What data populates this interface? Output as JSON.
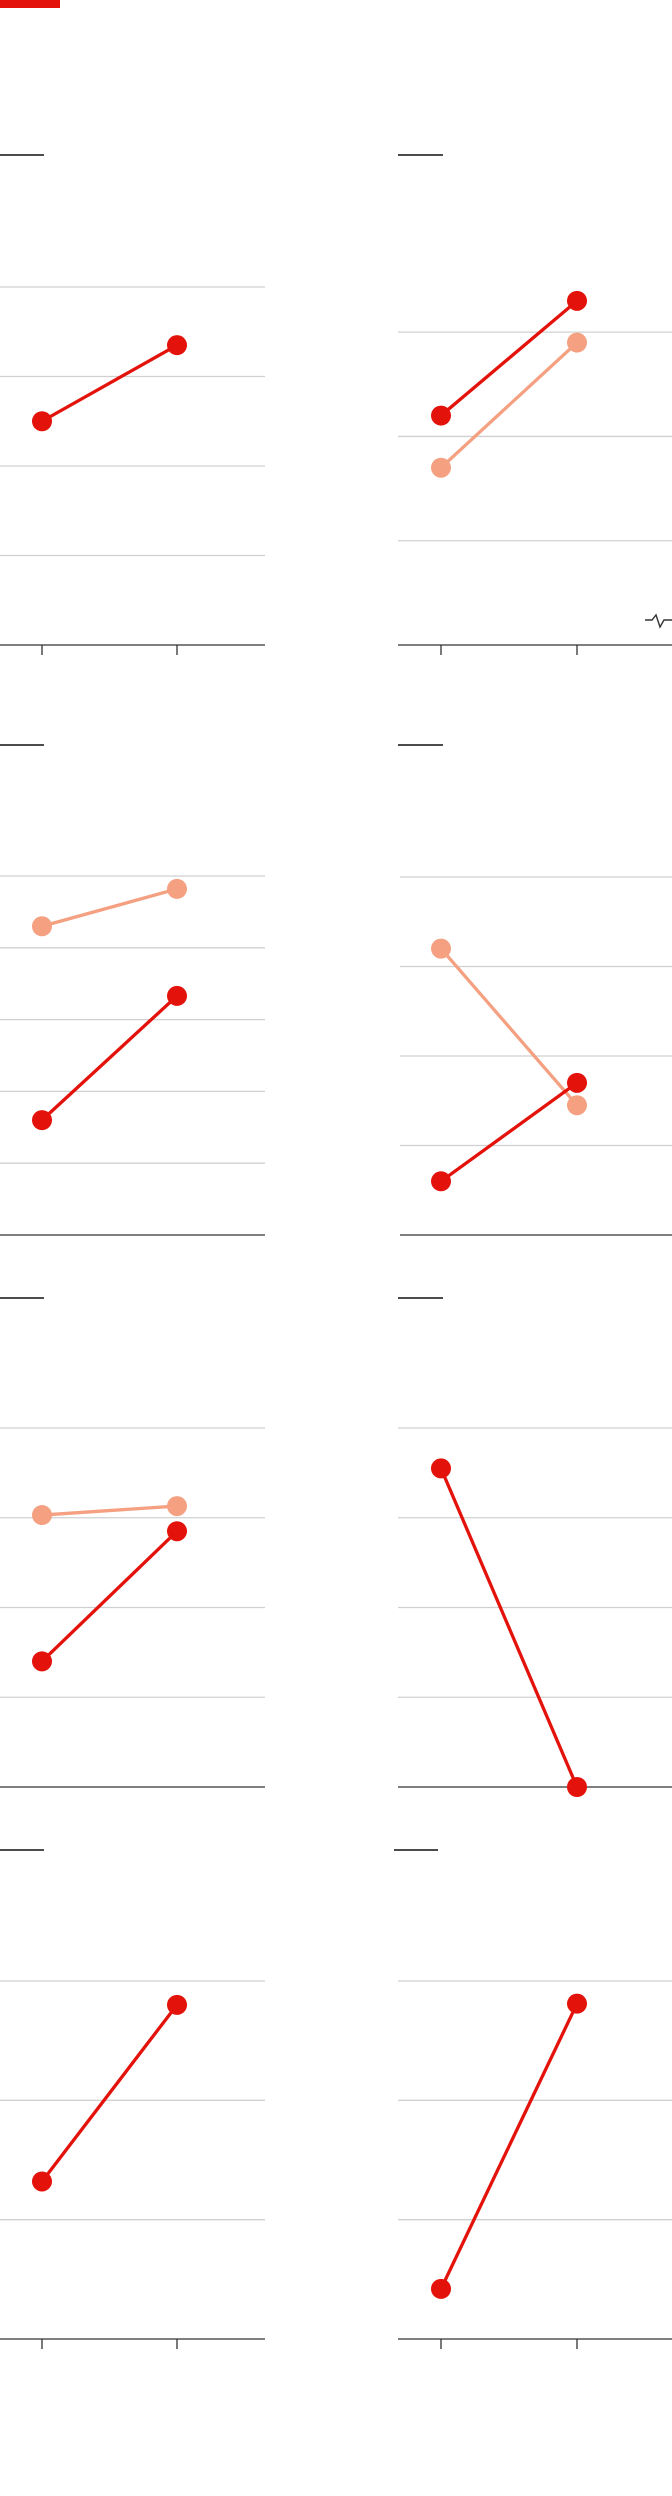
{
  "colors": {
    "primary": "#e3120b",
    "secondary": "#f4a081",
    "grid": "#d0d0d0",
    "axis": "#333333"
  },
  "chart_data": [
    {
      "type": "line",
      "title": "",
      "categories": [
        "",
        ""
      ],
      "ylim": [
        0,
        4
      ],
      "gridlines": [
        1,
        2,
        3,
        4
      ],
      "tick_marks": true,
      "series": [
        {
          "color_key": "primary",
          "values": [
            2.5,
            3.35
          ]
        }
      ]
    },
    {
      "type": "line",
      "title": "",
      "categories": [
        "",
        ""
      ],
      "ylim": [
        0,
        3.5
      ],
      "gridlines": [
        1,
        2,
        3
      ],
      "tick_marks": true,
      "axis_break": true,
      "series": [
        {
          "color_key": "primary",
          "values": [
            2.2,
            3.3
          ]
        },
        {
          "color_key": "secondary",
          "values": [
            1.7,
            2.9
          ]
        }
      ]
    },
    {
      "type": "line",
      "title": "",
      "categories": [
        "",
        ""
      ],
      "ylim": [
        0,
        5
      ],
      "gridlines": [
        1,
        2,
        3,
        4,
        5
      ],
      "tick_marks": false,
      "series": [
        {
          "color_key": "secondary",
          "values": [
            4.3,
            4.82
          ]
        },
        {
          "color_key": "primary",
          "values": [
            1.6,
            3.33
          ]
        }
      ]
    },
    {
      "type": "line",
      "title": "",
      "categories": [
        "",
        ""
      ],
      "ylim": [
        0,
        4
      ],
      "gridlines": [
        1,
        2,
        3,
        4
      ],
      "tick_marks": false,
      "series": [
        {
          "color_key": "secondary",
          "values": [
            3.2,
            1.45
          ]
        },
        {
          "color_key": "primary",
          "values": [
            0.6,
            1.7
          ]
        }
      ]
    },
    {
      "type": "line",
      "title": "",
      "categories": [
        "",
        ""
      ],
      "ylim": [
        0,
        4
      ],
      "gridlines": [
        1,
        2,
        3,
        4
      ],
      "tick_marks": false,
      "series": [
        {
          "color_key": "secondary",
          "values": [
            3.03,
            3.13
          ]
        },
        {
          "color_key": "primary",
          "values": [
            1.4,
            2.85
          ]
        }
      ]
    },
    {
      "type": "line",
      "title": "",
      "categories": [
        "",
        ""
      ],
      "ylim": [
        0,
        4
      ],
      "gridlines": [
        1,
        2,
        3,
        4
      ],
      "tick_marks": false,
      "series": [
        {
          "color_key": "primary",
          "values": [
            3.55,
            0
          ]
        }
      ]
    },
    {
      "type": "line",
      "title": "",
      "categories": [
        "",
        ""
      ],
      "ylim": [
        0,
        3
      ],
      "gridlines": [
        1,
        2,
        3
      ],
      "tick_marks": true,
      "series": [
        {
          "color_key": "primary",
          "values": [
            1.32,
            2.8
          ]
        }
      ]
    },
    {
      "type": "line",
      "title": "",
      "categories": [
        "",
        ""
      ],
      "ylim": [
        0,
        3
      ],
      "gridlines": [
        1,
        2,
        3
      ],
      "tick_marks": true,
      "series": [
        {
          "color_key": "primary",
          "values": [
            0.42,
            2.81
          ]
        }
      ]
    }
  ]
}
